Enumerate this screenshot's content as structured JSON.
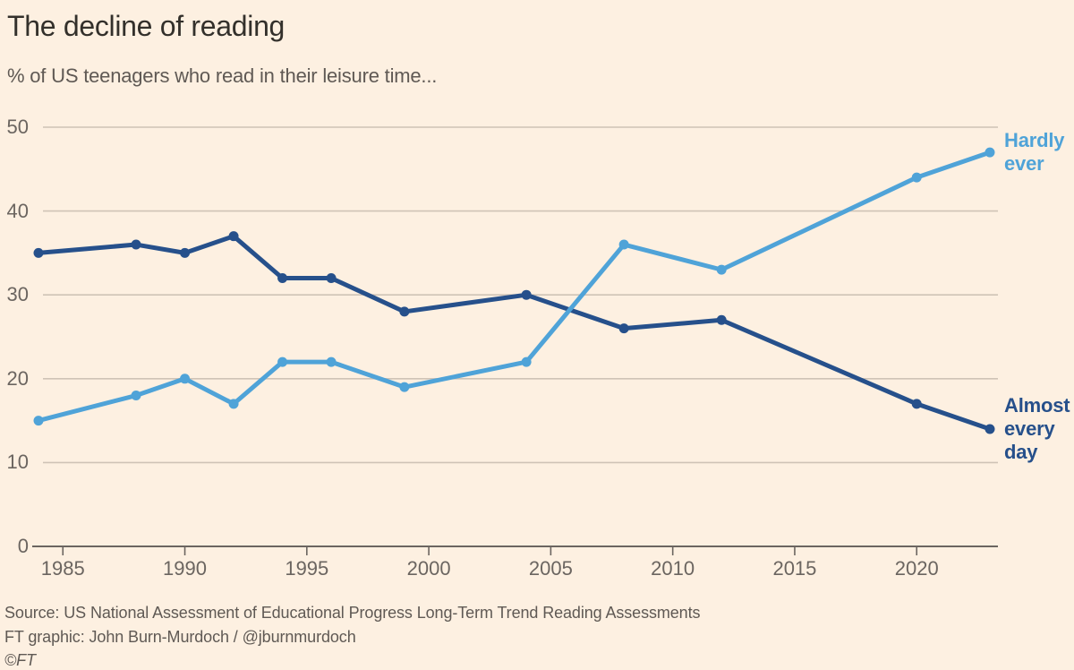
{
  "header": {
    "title": "The decline of reading",
    "subtitle": "% of US teenagers who read in their leisure time..."
  },
  "chart_data": {
    "type": "line",
    "title": "The decline of reading",
    "subtitle": "% of US teenagers who read in their leisure time...",
    "xlabel": "",
    "ylabel": "%",
    "x": [
      1984,
      1988,
      1990,
      1992,
      1994,
      1996,
      1999,
      2004,
      2008,
      2012,
      2020,
      2023
    ],
    "series": [
      {
        "name": "Almost every day",
        "label_lines": [
          "Almost",
          "every",
          "day"
        ],
        "color": "#26508B",
        "values": [
          35,
          36,
          35,
          37,
          32,
          32,
          28,
          30,
          26,
          27,
          17,
          14
        ]
      },
      {
        "name": "Hardly ever",
        "label_lines": [
          "Hardly",
          "ever"
        ],
        "color": "#4FA3D8",
        "values": [
          15,
          18,
          20,
          17,
          22,
          22,
          19,
          22,
          36,
          33,
          44,
          47
        ]
      }
    ],
    "ylim": [
      0,
      50
    ],
    "yticks": [
      0,
      10,
      20,
      30,
      40,
      50
    ],
    "xticks": [
      1985,
      1990,
      1995,
      2000,
      2005,
      2010,
      2015,
      2020
    ],
    "grid": "horizontal",
    "legend_position": "right-end-of-lines",
    "colors": {
      "background": "#FDF0E1",
      "gridline": "#CFC3B6",
      "axis": "#6B6560",
      "dark_blue": "#26508B",
      "light_blue": "#4FA3D8"
    }
  },
  "footer": {
    "source": "Source: US National Assessment of Educational Progress Long-Term Trend Reading Assessments",
    "credit": "FT graphic: John Burn-Murdoch / @jburnmurdoch",
    "copyright": "©FT"
  }
}
